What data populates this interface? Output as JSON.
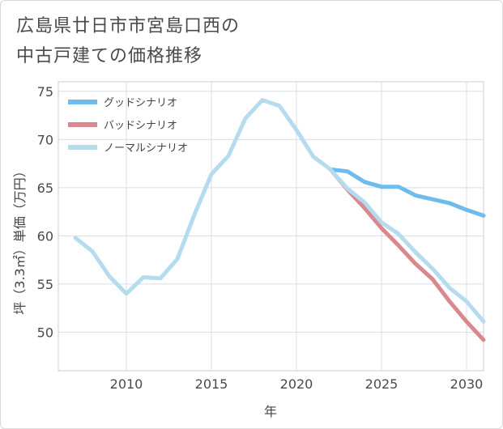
{
  "chart_data": {
    "type": "line",
    "title": [
      "広島県廿日市市宮島口西の",
      "中古戸建ての価格推移"
    ],
    "xlabel": "年",
    "ylabel": "坪（3.3㎡）単価（万円）",
    "xlim": [
      2006,
      2031
    ],
    "ylim": [
      46,
      76
    ],
    "x_ticks": [
      2010,
      2015,
      2020,
      2025,
      2030
    ],
    "y_ticks": [
      50,
      55,
      60,
      65,
      70,
      75
    ],
    "legend_position": "top-left",
    "series": [
      {
        "name": "グッドシナリオ",
        "color": "#6fbbec",
        "x": [
          2022,
          2023,
          2024,
          2025,
          2026,
          2027,
          2028,
          2029,
          2030,
          2031
        ],
        "values": [
          66.9,
          66.7,
          65.6,
          65.1,
          65.1,
          64.2,
          63.8,
          63.4,
          62.7,
          62.1
        ]
      },
      {
        "name": "バッドシナリオ",
        "color": "#d9888f",
        "x": [
          2022,
          2023,
          2024,
          2025,
          2026,
          2027,
          2028,
          2029,
          2030,
          2031
        ],
        "values": [
          66.9,
          64.8,
          62.9,
          60.8,
          59.0,
          57.1,
          55.5,
          53.2,
          51.1,
          49.2
        ]
      },
      {
        "name": "ノーマルシナリオ",
        "color": "#b5dcee",
        "x": [
          2007,
          2008,
          2009,
          2010,
          2011,
          2012,
          2013,
          2014,
          2015,
          2016,
          2017,
          2018,
          2019,
          2020,
          2021,
          2022,
          2023,
          2024,
          2025,
          2026,
          2027,
          2028,
          2029,
          2030,
          2031
        ],
        "values": [
          59.8,
          58.4,
          55.8,
          54.0,
          55.7,
          55.6,
          57.6,
          62.2,
          66.4,
          68.3,
          72.2,
          74.1,
          73.5,
          71.0,
          68.2,
          66.9,
          64.9,
          63.5,
          61.4,
          60.2,
          58.3,
          56.6,
          54.6,
          53.2,
          51.1
        ]
      }
    ]
  }
}
